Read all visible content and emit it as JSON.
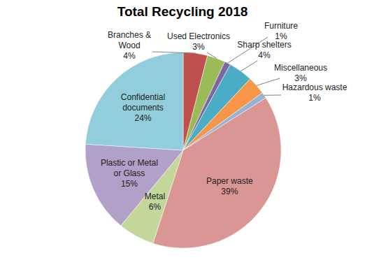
{
  "chart_data": {
    "type": "pie",
    "title": "Total Recycling 2018",
    "categories": [
      "Branches & Wood",
      "Used Electronics",
      "Furniture",
      "Sharp shelters",
      "Miscellaneous",
      "Hazardous waste",
      "Paper waste",
      "Metal",
      "Plastic or Metal or Glass",
      "Confidential documents"
    ],
    "values": [
      4,
      3,
      1,
      4,
      3,
      1,
      39,
      6,
      15,
      24
    ],
    "value_labels": [
      "4%",
      "3%",
      "1%",
      "4%",
      "3%",
      "1%",
      "39%",
      "6%",
      "15%",
      "24%"
    ],
    "colors": [
      "#C0504D",
      "#9BBB59",
      "#8064A2",
      "#4BACC6",
      "#F79646",
      "#95B3D7",
      "#DA9694",
      "#C4D79B",
      "#B1A0C7",
      "#92CDDC"
    ],
    "data_labels": true
  }
}
